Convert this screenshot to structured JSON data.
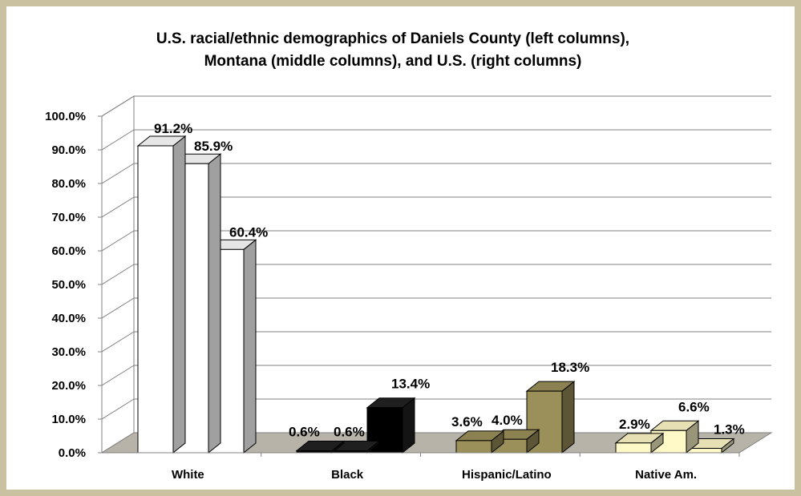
{
  "chart_data": {
    "type": "bar",
    "title_lines": [
      "U.S. racial/ethnic demographics of Daniels County (left columns),",
      "Montana (middle columns), and U.S. (right columns)"
    ],
    "categories": [
      "White",
      "Black",
      "Hispanic/Latino",
      "Native Am."
    ],
    "series": [
      {
        "values": [
          91.2,
          0.6,
          3.6,
          2.9
        ]
      },
      {
        "values": [
          85.9,
          0.6,
          4.0,
          6.6
        ]
      },
      {
        "values": [
          60.4,
          13.4,
          18.3,
          1.3
        ]
      }
    ],
    "data_labels": [
      [
        "91.2%",
        "85.9%",
        "60.4%"
      ],
      [
        "0.6%",
        "0.6%",
        "13.4%"
      ],
      [
        "3.6%",
        "4.0%",
        "18.3%"
      ],
      [
        "2.9%",
        "6.6%",
        "1.3%"
      ]
    ],
    "category_colors": [
      "#ffffff",
      "#000000",
      "#9b8f5a",
      "#fff9c8"
    ],
    "ytick_labels": [
      "0.0%",
      "10.0%",
      "20.0%",
      "30.0%",
      "40.0%",
      "50.0%",
      "60.0%",
      "70.0%",
      "80.0%",
      "90.0%",
      "100.0%"
    ],
    "ylim": [
      0,
      100
    ],
    "grid": true,
    "three_d": true,
    "floor_color": "#b7b3a8"
  }
}
